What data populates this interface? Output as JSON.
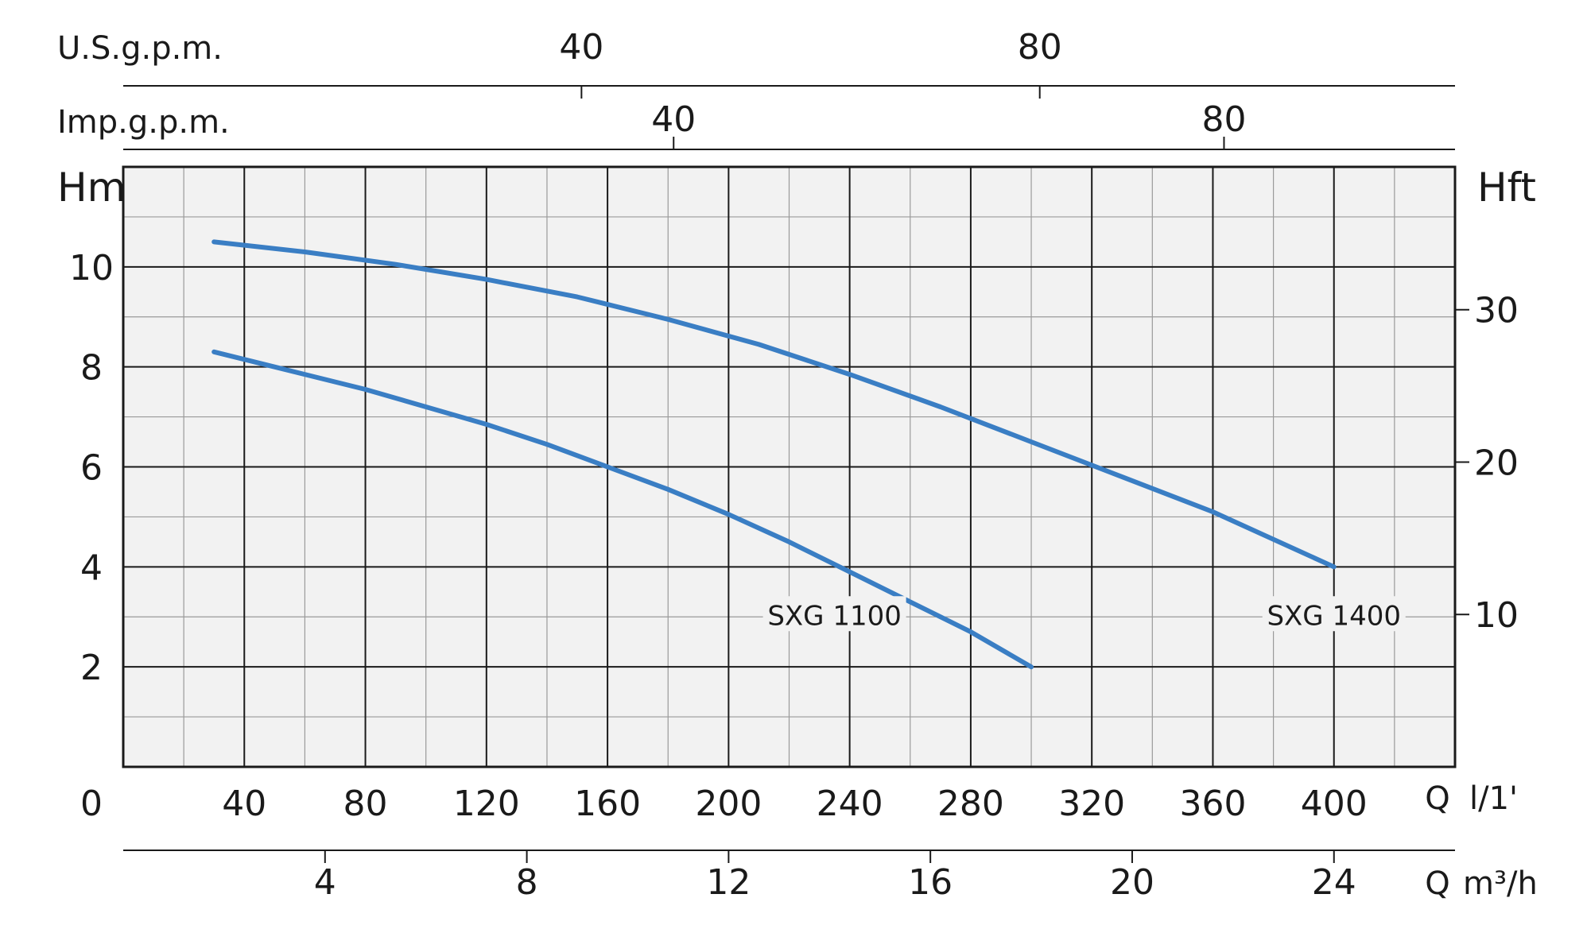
{
  "colors": {
    "plot_background": "#f2f2f2",
    "curve": "#3a7ec4",
    "grid_major": "#1a1a1a",
    "grid_minor": "#9a9a9a"
  },
  "chart_data": {
    "type": "line",
    "x_axis": {
      "label_q": "Q",
      "unit": "l/1'",
      "origin_label": "0",
      "range": [
        0,
        440
      ],
      "ticks": [
        40,
        80,
        120,
        160,
        200,
        240,
        280,
        320,
        360,
        400
      ],
      "minor_step": 20
    },
    "secondary_axes": [
      {
        "id": "m3h",
        "label_q": "Q",
        "unit": "m³/h",
        "ticks": [
          4,
          8,
          12,
          16,
          20,
          24
        ],
        "factor_to_lpm": 16.667
      },
      {
        "id": "imp",
        "unit": "Imp.g.p.m.",
        "ticks": [
          40,
          80
        ],
        "factor_to_lpm": 4.546
      },
      {
        "id": "us",
        "unit": "U.S.g.p.m.",
        "ticks": [
          40,
          80
        ],
        "factor_to_lpm": 3.785
      }
    ],
    "y_axis": {
      "label": "Hm",
      "range": [
        0,
        12
      ],
      "ticks": [
        2,
        4,
        6,
        8,
        10
      ],
      "minor_step": 1
    },
    "y_axis_right": {
      "label": "Hft",
      "ticks": [
        10,
        20,
        30
      ],
      "factor_to_m": 0.3048
    },
    "grid": true,
    "series": [
      {
        "name": "SXG 1100",
        "x": [
          30,
          50,
          80,
          100,
          120,
          140,
          160,
          180,
          200,
          220,
          240,
          260,
          280,
          300
        ],
        "y": [
          8.3,
          8.0,
          7.55,
          7.2,
          6.85,
          6.45,
          6.0,
          5.55,
          5.05,
          4.5,
          3.9,
          3.3,
          2.7,
          2.0
        ]
      },
      {
        "name": "SXG 1400",
        "x": [
          30,
          60,
          90,
          120,
          150,
          180,
          210,
          240,
          270,
          300,
          330,
          360,
          400
        ],
        "y": [
          10.5,
          10.3,
          10.05,
          9.75,
          9.4,
          8.95,
          8.45,
          7.85,
          7.2,
          6.5,
          5.8,
          5.1,
          4.0
        ]
      }
    ]
  }
}
